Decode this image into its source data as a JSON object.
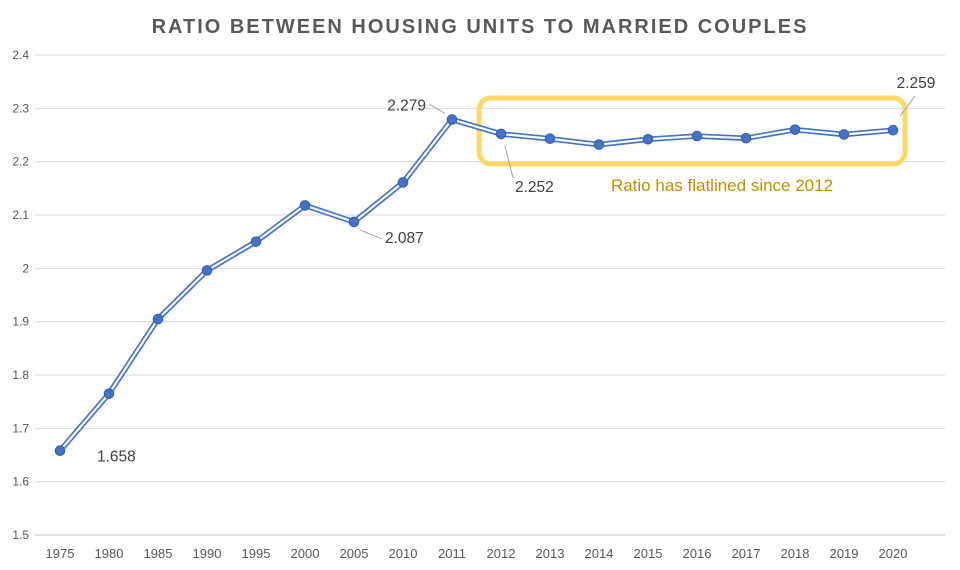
{
  "chart_data": {
    "type": "line",
    "title": "RATIO BETWEEN HOUSING UNITS TO MARRIED COUPLES",
    "xlabel": "",
    "ylabel": "",
    "categories": [
      "1975",
      "1980",
      "1985",
      "1990",
      "1995",
      "2000",
      "2005",
      "2010",
      "2011",
      "2012",
      "2013",
      "2014",
      "2015",
      "2016",
      "2017",
      "2018",
      "2019",
      "2020"
    ],
    "values": [
      1.658,
      1.765,
      1.905,
      1.996,
      2.05,
      2.118,
      2.087,
      2.161,
      2.279,
      2.252,
      2.243,
      2.232,
      2.242,
      2.248,
      2.244,
      2.26,
      2.251,
      2.259
    ],
    "ylim": [
      1.5,
      2.4
    ],
    "ytick_step": 0.1,
    "ytick_labels": [
      "1.5",
      "1.6",
      "1.7",
      "1.8",
      "1.9",
      "2",
      "2.1",
      "2.2",
      "2.3",
      "2.4"
    ],
    "grid": true,
    "legend": "none",
    "series_color": "#4472C4",
    "marker_edge_color": "#3A5FA8",
    "grid_color": "#D9D9D9",
    "axis_line_color": "#BFBFBF",
    "axis_text_color": "#595959",
    "title_color": "#595959",
    "leader_color": "#A6A6A6",
    "point_labels": [
      {
        "index": 0,
        "text": "1.658"
      },
      {
        "index": 6,
        "text": "2.087"
      },
      {
        "index": 8,
        "text": "2.279"
      },
      {
        "index": 9,
        "text": "2.252"
      },
      {
        "index": 17,
        "text": "2.259"
      }
    ],
    "highlight": {
      "label": "Ratio has flatlined since 2012",
      "box_color": "#FFD966",
      "text_color": "#BF8F00",
      "from_category": "2012",
      "to_category": "2020"
    }
  }
}
